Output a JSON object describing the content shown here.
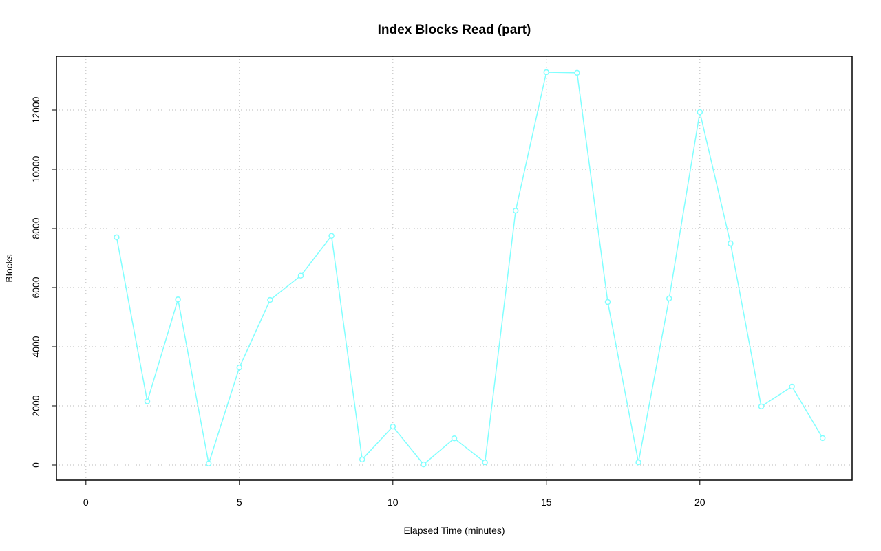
{
  "chart_data": {
    "type": "line",
    "title": "Index Blocks Read (part)",
    "x_label": "Elapsed Time (minutes)",
    "y_label": "Blocks",
    "x": [
      1,
      2,
      3,
      4,
      5,
      6,
      7,
      8,
      9,
      10,
      11,
      12,
      13,
      14,
      15,
      16,
      17,
      18,
      19,
      20,
      21,
      22,
      23,
      24
    ],
    "series": [
      {
        "name": "Index Blocks Read",
        "color": "#80ffff",
        "values": [
          7700,
          2150,
          5600,
          50,
          3300,
          5580,
          6400,
          7750,
          190,
          1300,
          20,
          900,
          90,
          8600,
          13280,
          13260,
          5510,
          90,
          5630,
          11930,
          7490,
          1980,
          2650,
          910
        ]
      }
    ],
    "xlim": [
      -0.96,
      24.96
    ],
    "ylim": [
      -512,
      13814
    ],
    "xticks": [
      0,
      5,
      10,
      15,
      20
    ],
    "yticks": [
      0,
      2000,
      4000,
      6000,
      8000,
      10000,
      12000
    ],
    "grid": true,
    "markers": "open-circle"
  }
}
